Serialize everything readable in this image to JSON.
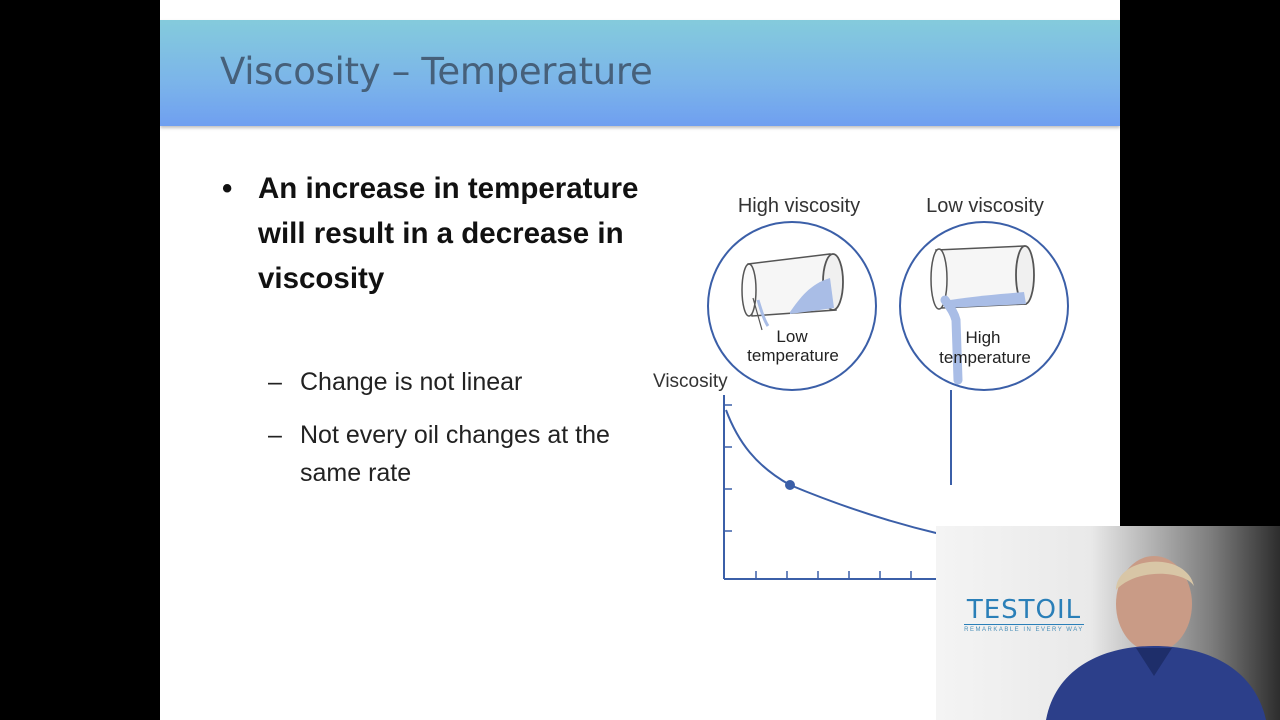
{
  "slide": {
    "title": "Viscosity – Temperature",
    "bullet": {
      "symbol": "•",
      "text": "An increase in temperature will result in a decrease in viscosity"
    },
    "subbullets": [
      {
        "symbol": "–",
        "text": "Change is not linear"
      },
      {
        "symbol": "–",
        "text": "Not every oil changes at the same rate"
      }
    ]
  },
  "diagram": {
    "left_label": "High viscosity",
    "right_label": "Low viscosity",
    "left_cup_label": [
      "Low",
      "temperature"
    ],
    "right_cup_label": [
      "High",
      "temperature"
    ],
    "axis_label": "Viscosity",
    "colors": {
      "outline": "#3b5fa8",
      "fluid": "#a9bde6"
    }
  },
  "presenter": {
    "logo_text": "TESTOIL",
    "logo_tagline": "REMARKABLE IN EVERY WAY"
  }
}
